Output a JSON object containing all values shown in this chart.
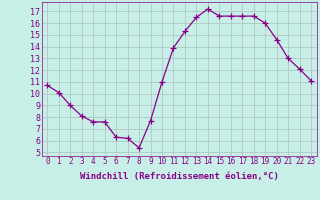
{
  "x": [
    0,
    1,
    2,
    3,
    4,
    5,
    6,
    7,
    8,
    9,
    10,
    11,
    12,
    13,
    14,
    15,
    16,
    17,
    18,
    19,
    20,
    21,
    22,
    23
  ],
  "y": [
    10.7,
    10.1,
    9.0,
    8.1,
    7.6,
    7.6,
    6.3,
    6.2,
    5.4,
    7.7,
    11.0,
    13.9,
    15.3,
    16.5,
    17.2,
    16.6,
    16.6,
    16.6,
    16.6,
    16.0,
    14.6,
    13.0,
    12.1,
    11.1
  ],
  "line_color": "#880088",
  "marker": "+",
  "marker_size": 4,
  "marker_color": "#880088",
  "bg_color": "#c8eee8",
  "grid_color": "#b0c8c0",
  "tick_color": "#880088",
  "label_color": "#880088",
  "xlabel": "Windchill (Refroidissement éolien,°C)",
  "xlabel_fontsize": 6.5,
  "ytick_labels": [
    "5",
    "6",
    "7",
    "8",
    "9",
    "10",
    "11",
    "12",
    "13",
    "14",
    "15",
    "16",
    "17"
  ],
  "ylim": [
    4.7,
    17.8
  ],
  "xlim": [
    -0.5,
    23.5
  ],
  "xtick_fontsize": 5.5,
  "ytick_fontsize": 6.0
}
